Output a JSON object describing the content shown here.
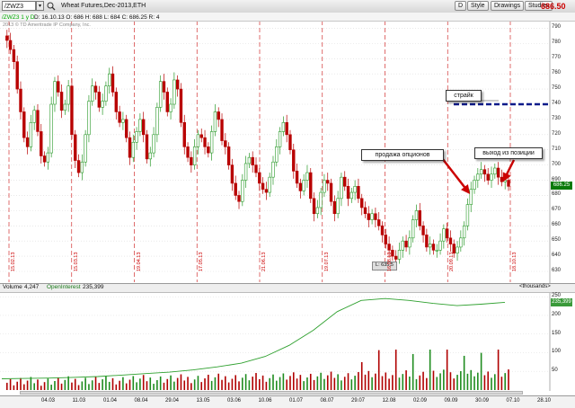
{
  "toolbar": {
    "symbol": "/ZWZ3",
    "description": "Wheat Futures,Dec-2013,ETH",
    "last_price": "686.50",
    "buttons": {
      "d": "D",
      "style": "Style",
      "drawings": "Drawings",
      "studies": "Studies"
    }
  },
  "infobar": {
    "chart_symbol": "/ZWZ3 1 y D",
    "ohlc": "D: 16.10.13   O: 686   H: 688   L: 684   C: 686.25   R: 4"
  },
  "copyright": "2013 © TD Ameritrade IP Company, Inc.",
  "price_axis": {
    "ticks": [
      "790",
      "780",
      "770",
      "760",
      "750",
      "740",
      "730",
      "720",
      "710",
      "700",
      "690",
      "680",
      "670",
      "660",
      "650",
      "640",
      "630"
    ],
    "current_tag": "686.25",
    "current_value": 686.25
  },
  "annotations": {
    "strike_label": "страйк",
    "strike_value": 740,
    "sell_options_label": "продажа опционов",
    "exit_label": "выход из позиции",
    "low_label": "L: 635.5",
    "colors": {
      "strike_line": "#0a1a8a",
      "arrow": "#cc0000"
    }
  },
  "date_markers": [
    "15.02.13",
    "15.03.13",
    "19.04.13",
    "17.05.13",
    "21.06.13",
    "19.07.13",
    "16.08.13",
    "20.09.13",
    "18.10.13"
  ],
  "volume_pane": {
    "volume_label": "Volume",
    "volume_value": "4,247",
    "oi_label": "OpenInterest",
    "oi_value": "235,399",
    "units": "<thousands>",
    "ticks": [
      "250",
      "200",
      "150",
      "100",
      "50"
    ],
    "oi_tag": "235,399",
    "colors": {
      "oi_line": "#2ea02e",
      "vol_up": "#1f8c1f",
      "vol_down": "#b00000"
    }
  },
  "x_axis": {
    "labels": [
      "04.03",
      "11.03",
      "01.04",
      "08.04",
      "29.04",
      "13.05",
      "03.06",
      "10.06",
      "01.07",
      "08.07",
      "29.07",
      "12.08",
      "02.09",
      "09.09",
      "30.09",
      "07.10",
      "28.10"
    ]
  },
  "chart_data": {
    "type": "candlestick",
    "ylim": [
      630,
      795
    ],
    "price_path": [
      785,
      782,
      776,
      768,
      750,
      735,
      718,
      712,
      728,
      736,
      722,
      706,
      702,
      708,
      740,
      755,
      748,
      736,
      740,
      752,
      720,
      703,
      695,
      702,
      720,
      742,
      752,
      748,
      738,
      742,
      752,
      760,
      748,
      735,
      728,
      730,
      718,
      705,
      715,
      722,
      730,
      720,
      704,
      708,
      720,
      738,
      755,
      748,
      735,
      740,
      756,
      750,
      728,
      712,
      705,
      700,
      712,
      720,
      718,
      712,
      708,
      722,
      735,
      730,
      716,
      712,
      700,
      688,
      680,
      676,
      690,
      701,
      705,
      700,
      695,
      688,
      684,
      682,
      692,
      702,
      712,
      722,
      728,
      720,
      710,
      696,
      688,
      683,
      690,
      695,
      678,
      668,
      672,
      682,
      690,
      688,
      676,
      668,
      678,
      692,
      686,
      678,
      682,
      686,
      678,
      672,
      668,
      664,
      668,
      664,
      660,
      654,
      648,
      644,
      640,
      638,
      644,
      650,
      646,
      652,
      664,
      670,
      660,
      654,
      646,
      648,
      644,
      644,
      650,
      658,
      652,
      648,
      642,
      646,
      652,
      660,
      674,
      684,
      690,
      694,
      697,
      694,
      690,
      694,
      698,
      692,
      689,
      690,
      686
    ],
    "open_interest_thousands": [
      30,
      31,
      32,
      34,
      36,
      40,
      44,
      48,
      54,
      62,
      72,
      90,
      120,
      160,
      210,
      240,
      245,
      240,
      232,
      226,
      230,
      235
    ]
  }
}
